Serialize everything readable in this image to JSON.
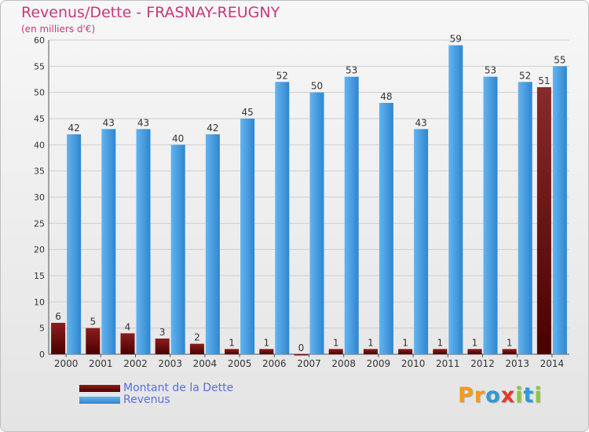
{
  "header": {
    "title": "Revenus/Dette - FRASNAY-REUGNY",
    "subtitle": "(en milliers d'€)"
  },
  "legend": {
    "debt_label": "Montant de la Dette",
    "revenue_label": "Revenus"
  },
  "logo": {
    "text": "Proxiti",
    "letters": [
      {
        "ch": "P",
        "color": "#f39a1c"
      },
      {
        "ch": "r",
        "color": "#f39a1c"
      },
      {
        "ch": "o",
        "color": "#2f9ad6"
      },
      {
        "ch": "x",
        "color": "#e33a2c"
      },
      {
        "ch": "i",
        "color": "#8cc63f"
      },
      {
        "ch": "t",
        "color": "#2f9ad6"
      },
      {
        "ch": "i",
        "color": "#8cc63f"
      }
    ]
  },
  "colors": {
    "title": "#c8397a",
    "debt_top": "#8b1e1e",
    "debt_bottom": "#4a0000",
    "debt_highlight_top": "#8a2a2a",
    "revenue_top": "#63b3ef",
    "revenue_bottom": "#2f86cf",
    "grid": "#cfcfcf"
  },
  "chart_data": {
    "type": "bar",
    "title": "Revenus/Dette - FRASNAY-REUGNY",
    "subtitle": "(en milliers d'€)",
    "categories": [
      "2000",
      "2001",
      "2002",
      "2003",
      "2004",
      "2005",
      "2006",
      "2007",
      "2008",
      "2009",
      "2010",
      "2011",
      "2012",
      "2013",
      "2014"
    ],
    "series": [
      {
        "name": "Montant de la Dette",
        "values": [
          6,
          5,
          4,
          3,
          2,
          1,
          1,
          0,
          1,
          1,
          1,
          1,
          1,
          1,
          51
        ]
      },
      {
        "name": "Revenus",
        "values": [
          42,
          43,
          43,
          40,
          42,
          45,
          52,
          50,
          53,
          48,
          43,
          59,
          53,
          52,
          55
        ]
      }
    ],
    "ylim": [
      0,
      60
    ],
    "yticks": [
      0,
      5,
      10,
      15,
      20,
      25,
      30,
      35,
      40,
      45,
      50,
      55,
      60
    ],
    "grid": true,
    "legend_position": "bottom-left"
  }
}
